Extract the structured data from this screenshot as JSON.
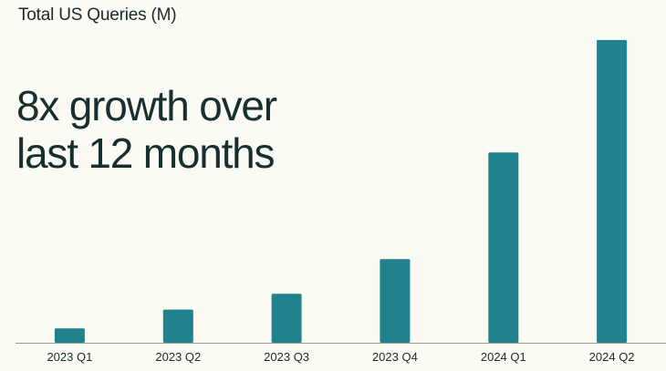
{
  "chart_data": {
    "type": "bar",
    "title": "Total US Queries (M)",
    "categories": [
      "2023 Q1",
      "2023 Q2",
      "2023 Q3",
      "2023 Q4",
      "2024 Q1",
      "2024 Q2"
    ],
    "values": [
      1,
      2.3,
      3.4,
      5.8,
      13.2,
      21
    ],
    "ylim": [
      0,
      21.5
    ],
    "xlabel": "",
    "ylabel": "",
    "grid": false,
    "bar_color": "#21828e",
    "axis_color": "#9a9a9a"
  },
  "headline": {
    "line1": "8x growth over",
    "line2": "last 12 months"
  }
}
